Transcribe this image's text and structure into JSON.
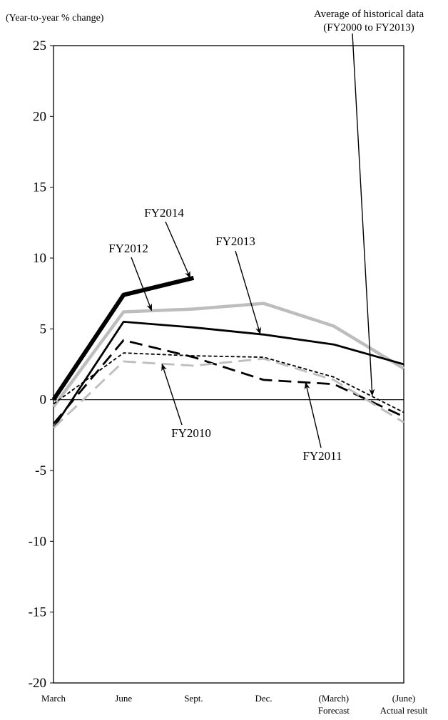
{
  "chart_data": {
    "type": "line",
    "ylabel": "(Year-to-year % change)",
    "ylim": [
      -20,
      25
    ],
    "yticks": [
      25,
      20,
      15,
      10,
      5,
      0,
      -5,
      -10,
      -15,
      -20
    ],
    "grid": false,
    "categories": [
      {
        "top": "March",
        "bottom": ""
      },
      {
        "top": "June",
        "bottom": ""
      },
      {
        "top": "Sept.",
        "bottom": ""
      },
      {
        "top": "Dec.",
        "bottom": ""
      },
      {
        "top": "(March)",
        "bottom": "Forecast"
      },
      {
        "top": "(June)",
        "bottom": "Actual result"
      }
    ],
    "series": [
      {
        "name": "FY2014",
        "color": "#000000",
        "dash": "solid",
        "weight": "heavy",
        "values": [
          0.0,
          7.4,
          8.6,
          null,
          null,
          null
        ]
      },
      {
        "name": "FY2012",
        "color": "#bdbdbd",
        "dash": "solid",
        "weight": "thick",
        "values": [
          -0.5,
          6.2,
          6.4,
          6.8,
          5.2,
          2.2
        ]
      },
      {
        "name": "FY2013",
        "color": "#000000",
        "dash": "solid",
        "weight": "medium",
        "values": [
          -2.0,
          5.5,
          5.1,
          4.6,
          3.9,
          2.5
        ]
      },
      {
        "name": "FY2011",
        "color": "#000000",
        "dash": "longdash",
        "weight": "medium",
        "values": [
          -1.7,
          4.2,
          3.0,
          1.4,
          1.1,
          -1.2
        ]
      },
      {
        "name": "Average of historical data (FY2000 to FY2013)",
        "color": "#000000",
        "dash": "shortdash",
        "weight": "thin",
        "values": [
          -0.3,
          3.3,
          3.1,
          3.0,
          1.6,
          -0.9
        ]
      },
      {
        "name": "FY2010",
        "color": "#bdbdbd",
        "dash": "longdash",
        "weight": "medium",
        "values": [
          -2.0,
          2.7,
          2.4,
          2.9,
          1.4,
          -1.6
        ]
      }
    ],
    "annotations": [
      {
        "series": "FY2014",
        "lines": [
          "FY2014"
        ],
        "target": [
          1.95,
          8.6
        ]
      },
      {
        "series": "FY2012",
        "lines": [
          "FY2012"
        ],
        "target": [
          1.4,
          6.3
        ]
      },
      {
        "series": "FY2013",
        "lines": [
          "FY2013"
        ],
        "target": [
          2.95,
          4.65
        ]
      },
      {
        "series": "FY2010",
        "lines": [
          "FY2010"
        ],
        "target": [
          1.55,
          2.5
        ]
      },
      {
        "series": "FY2011",
        "lines": [
          "FY2011"
        ],
        "target": [
          3.6,
          1.2
        ]
      },
      {
        "series": "Average of historical data (FY2000 to FY2013)",
        "lines": [
          "Average of historical data",
          "(FY2000 to FY2013)"
        ],
        "target": [
          4.55,
          0.3
        ]
      }
    ]
  }
}
